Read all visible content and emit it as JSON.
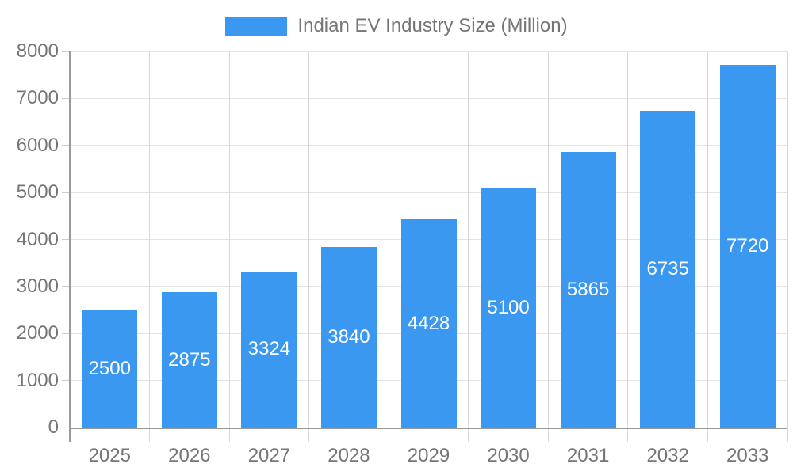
{
  "legend": {
    "label": "Indian EV Industry Size (Million)"
  },
  "chart_data": {
    "type": "bar",
    "title": "Indian EV Industry Size (Million)",
    "series_name": "Indian EV Industry Size (Million)",
    "categories": [
      "2025",
      "2026",
      "2027",
      "2028",
      "2029",
      "2030",
      "2031",
      "2032",
      "2033"
    ],
    "values": [
      2500,
      2875,
      3324,
      3840,
      4428,
      5100,
      5865,
      6735,
      7720
    ],
    "value_labels": [
      "2500",
      "2875",
      "3324",
      "3840",
      "4428",
      "5100",
      "5865",
      "6735",
      "7720"
    ],
    "value_label_position": "inside-center",
    "xlabel": "",
    "ylabel": "",
    "ylim": [
      0,
      8000
    ],
    "y_ticks": [
      "0",
      "1000",
      "2000",
      "3000",
      "4000",
      "5000",
      "6000",
      "7000",
      "8000"
    ],
    "grid": true,
    "legend_position": "top-center",
    "colors": {
      "bar": "#3B98F0",
      "value_label": "#ffffff",
      "axis_text": "#757575",
      "grid_horizontal": "#e3e3e3",
      "grid_vertical": "#d9d9d9",
      "axis_line": "#999999",
      "y_tick": "#cccccc",
      "background": "#ffffff"
    }
  }
}
